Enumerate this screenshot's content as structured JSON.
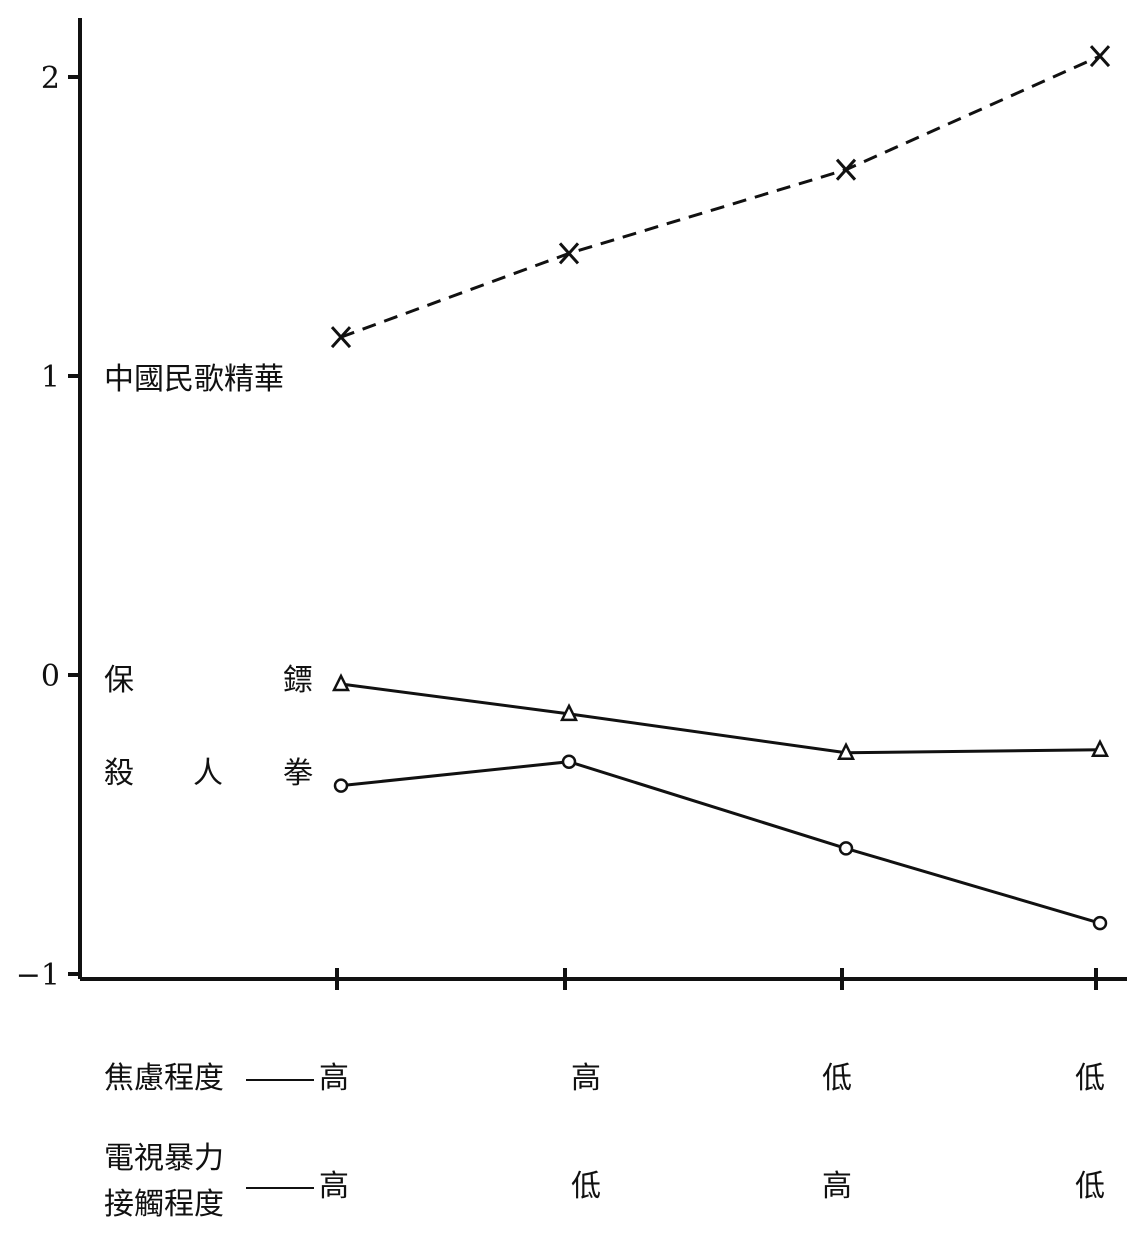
{
  "chart_data": {
    "type": "line",
    "categories": [
      "1",
      "2",
      "3",
      "4"
    ],
    "ylim": [
      -1,
      2.2
    ],
    "yticks": [
      -1,
      0,
      1,
      2
    ],
    "ytick_labels": [
      "−1",
      "0",
      "1",
      "2"
    ],
    "series": [
      {
        "name": "中國民歌精華",
        "marker": "x",
        "style": "dashed",
        "values": [
          1.13,
          1.41,
          1.69,
          2.07
        ]
      },
      {
        "name": "保鏢",
        "marker": "triangle",
        "style": "solid",
        "values": [
          -0.03,
          -0.13,
          -0.26,
          -0.25
        ]
      },
      {
        "name": "殺人拳",
        "marker": "circle",
        "style": "solid",
        "values": [
          -0.37,
          -0.29,
          -0.58,
          -0.83
        ]
      }
    ],
    "series_label_chars": {
      "bodyguard": [
        "保",
        "鏢"
      ],
      "fist": [
        "殺",
        "人",
        "拳"
      ]
    },
    "x_rows": [
      {
        "label": "焦慮程度",
        "values": [
          "高",
          "高",
          "低",
          "低"
        ]
      },
      {
        "label_lines": [
          "電視暴力",
          "接觸程度"
        ],
        "values": [
          "高",
          "低",
          "高",
          "低"
        ]
      }
    ]
  }
}
